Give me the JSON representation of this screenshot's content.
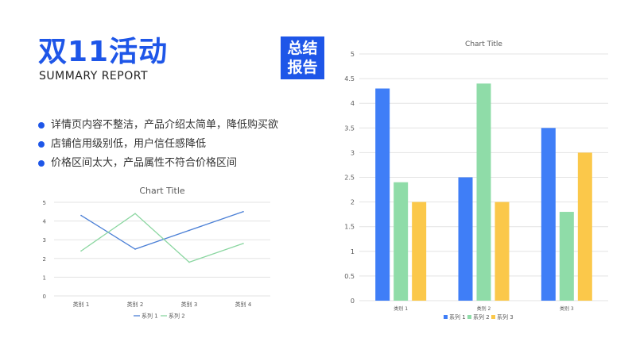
{
  "header": {
    "title": "双11活动",
    "subtitle": "SUMMARY REPORT",
    "badge_line1": "总结",
    "badge_line2": "报告"
  },
  "bullets": [
    "详情页内容不整洁，产品介绍太简单，降低购买欲",
    "店铺信用级别低，用户信任感降低",
    "价格区间太大，产品属性不符合价格区间"
  ],
  "colors": {
    "accent": "#1e56e8",
    "series1": "#3f7ef7",
    "series2": "#8fdca8",
    "series3": "#fbc84a",
    "line1": "#4a7fd6",
    "line2": "#8ad6a0"
  },
  "chart_data": [
    {
      "type": "line",
      "title": "Chart Title",
      "categories": [
        "类别 1",
        "类别 2",
        "类别 3",
        "类别 4"
      ],
      "series": [
        {
          "name": "系列 1",
          "values": [
            4.3,
            2.5,
            3.5,
            4.5
          ]
        },
        {
          "name": "系列 2",
          "values": [
            2.4,
            4.4,
            1.8,
            2.8
          ]
        }
      ],
      "ylim": [
        0,
        5
      ],
      "yticks": [
        0,
        1,
        2,
        3,
        4,
        5
      ],
      "grid": true,
      "legend": "bottom"
    },
    {
      "type": "bar",
      "title": "Chart Title",
      "categories": [
        "类别 1",
        "类别 2",
        "类别 3"
      ],
      "series": [
        {
          "name": "系列 1",
          "values": [
            4.3,
            2.5,
            3.5
          ]
        },
        {
          "name": "系列 2",
          "values": [
            2.4,
            4.4,
            1.8
          ]
        },
        {
          "name": "系列 3",
          "values": [
            2,
            2,
            3
          ]
        }
      ],
      "ylim": [
        0,
        5
      ],
      "yticks": [
        "0",
        "0.5",
        "1",
        "1.5",
        "2",
        "2.5",
        "3",
        "3.5",
        "4",
        "4.5",
        "5"
      ],
      "grid": true,
      "legend": "bottom"
    }
  ]
}
